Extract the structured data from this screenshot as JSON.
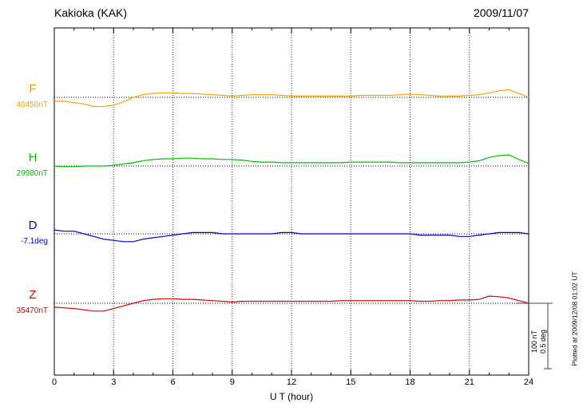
{
  "header": {
    "station": "Kakioka (KAK)",
    "date": "2009/11/07"
  },
  "footer": {
    "plotted_at": "Plotted at 2009/12/08 01:02 UT"
  },
  "scale_bar": {
    "nt_label": "100 nT",
    "deg_label": "0.5 deg"
  },
  "chart_data": {
    "type": "line",
    "title": "Kakioka (KAK)",
    "subtitle": "2009/11/07",
    "xlabel": "U T (hour)",
    "x_range": [
      0,
      24
    ],
    "x_step": 0.5,
    "x_ticks": [
      0,
      3,
      6,
      9,
      12,
      15,
      18,
      21,
      24
    ],
    "x_tick_labels": [
      "0",
      "3",
      "6",
      "9",
      "12",
      "15",
      "18",
      "21",
      "24"
    ],
    "grid": "dotted vertical lines at 3-hour intervals; dotted horizontal baseline for each trace",
    "legend_position": "left margin (trace letters F, H, D, Z with baseline values)",
    "scale": {
      "nT_per_div": 100,
      "deg_per_div": 0.5
    },
    "series": [
      {
        "name": "F",
        "unit": "nT",
        "base": 46450,
        "base_label": "46450nT",
        "color": "#f5a300",
        "values": [
          46444,
          46444,
          46442,
          46440,
          46436,
          46436,
          46438,
          46443,
          46450,
          46454,
          46456,
          46457,
          46457,
          46456,
          46456,
          46455,
          46454,
          46453,
          46452,
          46453,
          46454,
          46454,
          46454,
          46453,
          46452,
          46452,
          46452,
          46452,
          46452,
          46452,
          46452,
          46453,
          46453,
          46453,
          46453,
          46454,
          46455,
          46454,
          46453,
          46452,
          46452,
          46452,
          46453,
          46454,
          46457,
          46460,
          46462,
          46456,
          46450
        ]
      },
      {
        "name": "H",
        "unit": "nT",
        "base": 29980,
        "base_label": "29980nT",
        "color": "#00c000",
        "values": [
          29980,
          29979,
          29979,
          29980,
          29980,
          29980,
          29981,
          29983,
          29985,
          29988,
          29990,
          29991,
          29991,
          29992,
          29992,
          29991,
          29991,
          29990,
          29990,
          29989,
          29987,
          29986,
          29986,
          29985,
          29985,
          29985,
          29985,
          29985,
          29985,
          29985,
          29986,
          29986,
          29986,
          29986,
          29986,
          29985,
          29985,
          29985,
          29985,
          29985,
          29985,
          29985,
          29986,
          29988,
          29993,
          29996,
          29997,
          29990,
          29984
        ]
      },
      {
        "name": "D",
        "unit": "deg",
        "base": -7.1,
        "base_label": "-7.1deg",
        "color": "#0000cc",
        "values": [
          -7.07,
          -7.08,
          -7.08,
          -7.1,
          -7.12,
          -7.14,
          -7.15,
          -7.16,
          -7.16,
          -7.14,
          -7.13,
          -7.12,
          -7.11,
          -7.1,
          -7.09,
          -7.09,
          -7.09,
          -7.1,
          -7.1,
          -7.1,
          -7.1,
          -7.1,
          -7.1,
          -7.09,
          -7.09,
          -7.1,
          -7.1,
          -7.1,
          -7.1,
          -7.1,
          -7.1,
          -7.1,
          -7.1,
          -7.1,
          -7.1,
          -7.1,
          -7.1,
          -7.11,
          -7.11,
          -7.11,
          -7.11,
          -7.12,
          -7.12,
          -7.11,
          -7.1,
          -7.09,
          -7.09,
          -7.09,
          -7.1
        ]
      },
      {
        "name": "Z",
        "unit": "nT",
        "base": 35470,
        "base_label": "35470nT",
        "color": "#dd0000",
        "values": [
          35464,
          35463,
          35462,
          35460,
          35458,
          35458,
          35462,
          35466,
          35470,
          35474,
          35476,
          35477,
          35477,
          35476,
          35476,
          35475,
          35474,
          35473,
          35472,
          35473,
          35473,
          35473,
          35473,
          35473,
          35473,
          35473,
          35473,
          35473,
          35473,
          35474,
          35474,
          35474,
          35474,
          35474,
          35474,
          35474,
          35474,
          35473,
          35473,
          35474,
          35474,
          35475,
          35475,
          35476,
          35481,
          35480,
          35478,
          35474,
          35470
        ]
      }
    ]
  }
}
